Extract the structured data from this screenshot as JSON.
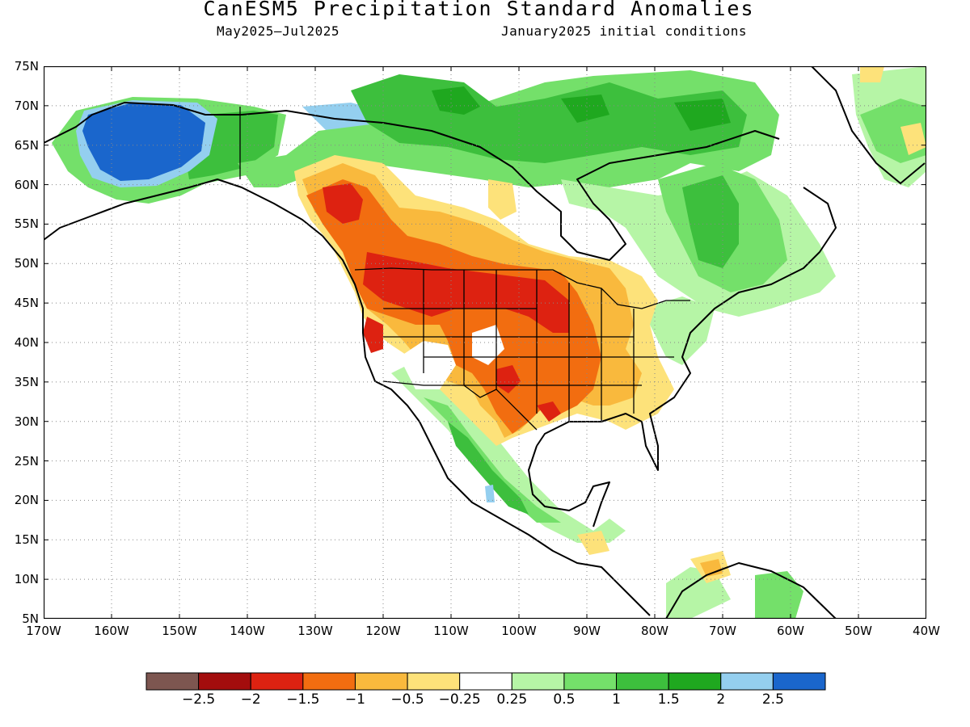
{
  "title": "CanESM5 Precipitation Standard Anomalies",
  "subtitle_left": "May2025–Jul2025",
  "subtitle_right": "January2025 initial conditions",
  "map": {
    "lon_range": [
      -170,
      -40
    ],
    "lat_range": [
      5,
      75
    ],
    "lat_labels": [
      "75N",
      "70N",
      "65N",
      "60N",
      "55N",
      "50N",
      "45N",
      "40N",
      "35N",
      "30N",
      "25N",
      "20N",
      "15N",
      "10N",
      "5N"
    ],
    "lon_labels": [
      "170W",
      "160W",
      "150W",
      "140W",
      "130W",
      "120W",
      "110W",
      "100W",
      "90W",
      "80W",
      "70W",
      "60W",
      "50W",
      "40W"
    ],
    "gridlines": "dotted",
    "regions": [
      {
        "name": "alaska-wet",
        "level": "2.5 to 3",
        "color": "#1a66cc"
      },
      {
        "name": "arctic-islands-wet",
        "level": "1 to 1.5",
        "color": "#33bb33"
      },
      {
        "name": "northwest-us-dry",
        "level": "-2 to -1.5",
        "color": "#dd2211"
      },
      {
        "name": "great-plains-dry",
        "level": "-1.5 to -1",
        "color": "#f26d10"
      },
      {
        "name": "mexico-west-wet",
        "level": "1 to 1.5",
        "color": "#33bb33"
      }
    ]
  },
  "colorbar": {
    "colors": [
      "#7d5650",
      "#a30d0d",
      "#dd2211",
      "#f26d10",
      "#f9b93d",
      "#fde27a",
      "#ffffff",
      "#b6f5a6",
      "#74e06a",
      "#3dbf3d",
      "#1fa81f",
      "#94cfef",
      "#1a66cc"
    ],
    "labels": [
      "−2.5",
      "−2",
      "−1.5",
      "−1",
      "−0.5",
      "−0.25",
      "0.25",
      "0.5",
      "1",
      "1.5",
      "2",
      "2.5"
    ]
  }
}
